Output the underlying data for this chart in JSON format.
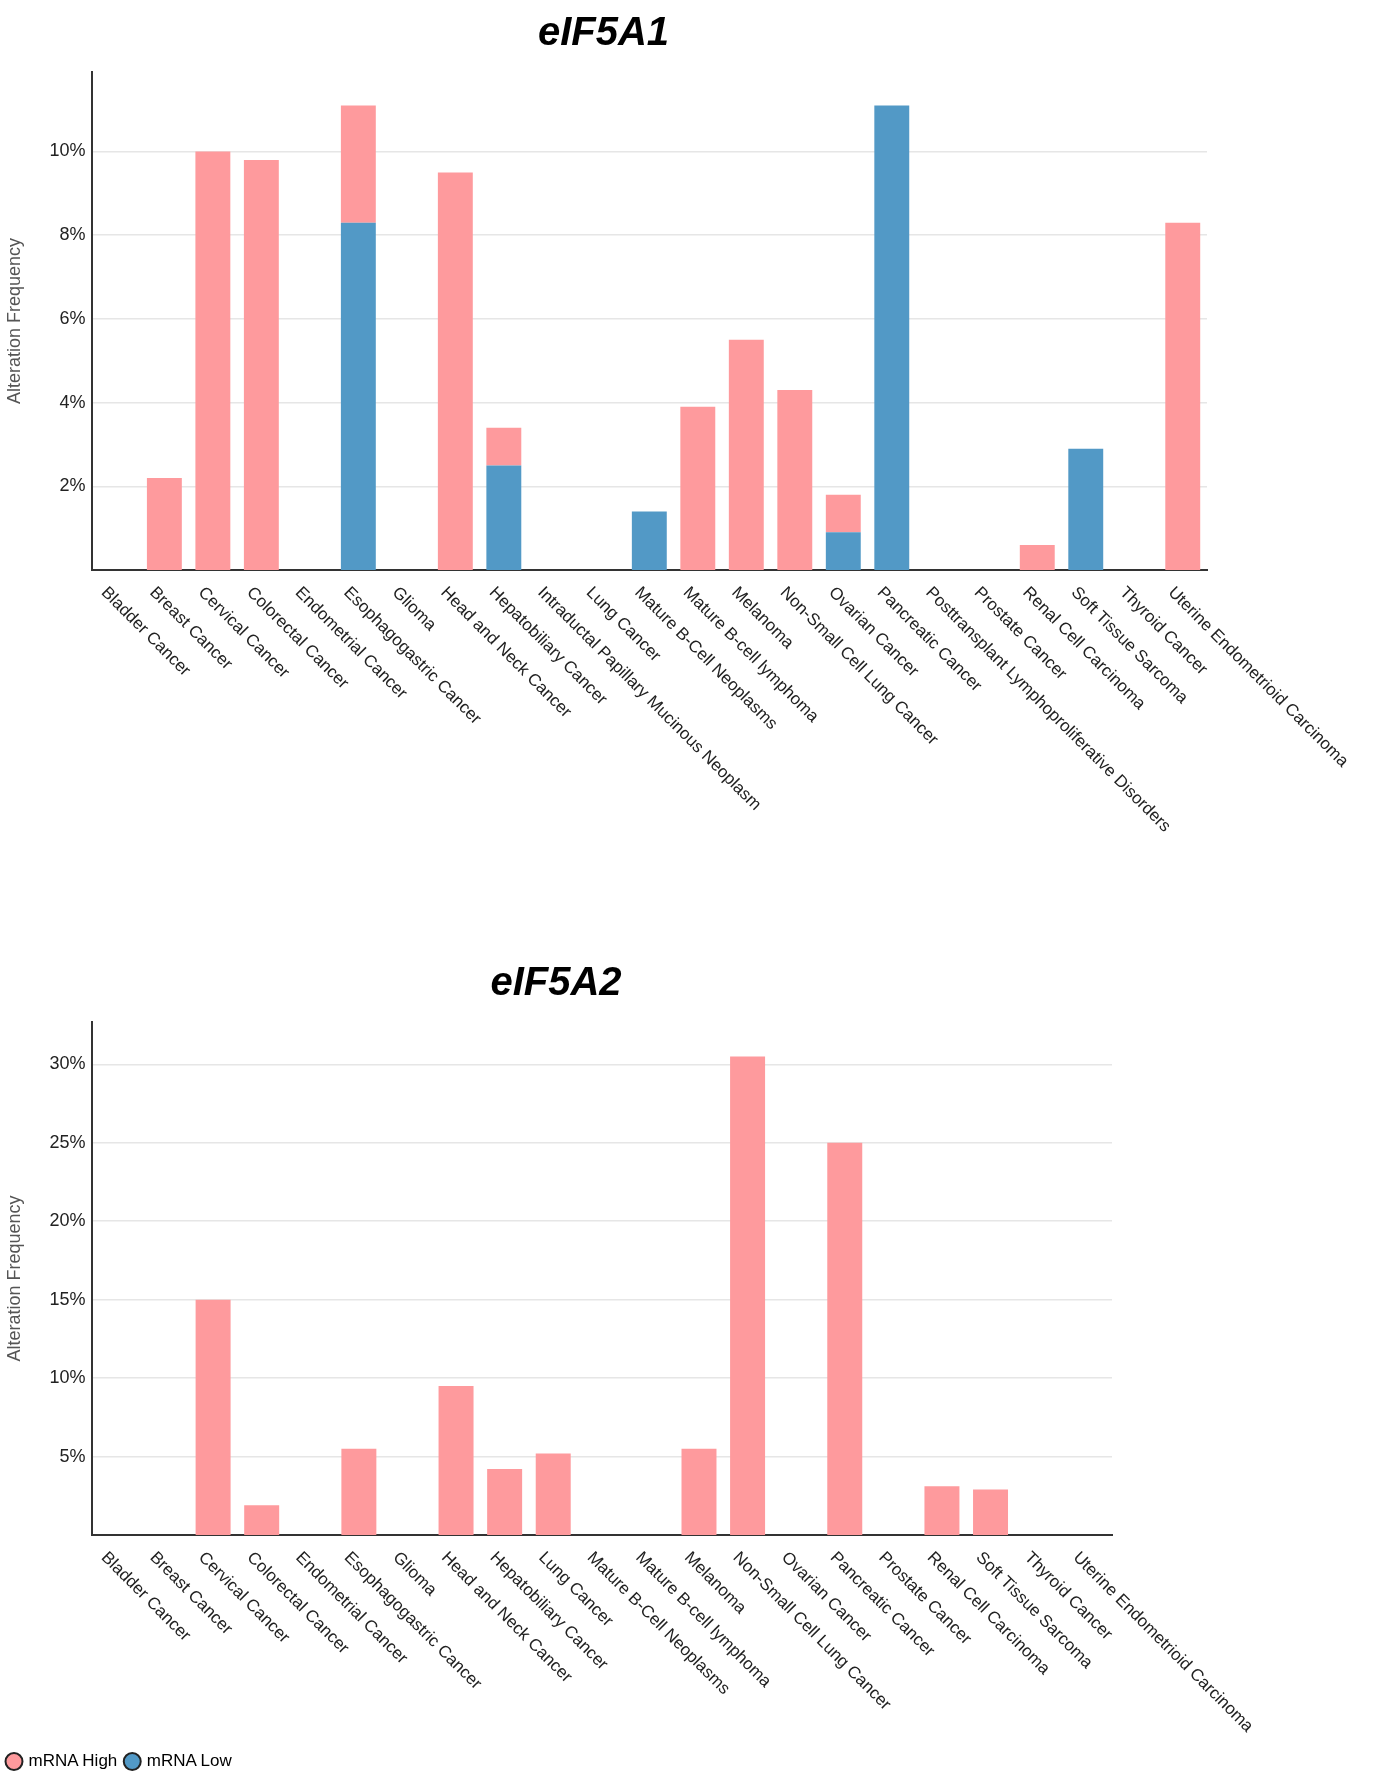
{
  "chart_data": [
    {
      "type": "bar",
      "title": "eIF5A1",
      "ylabel": "Alteration Frequency",
      "stacked": true,
      "grid": "y",
      "legend": false,
      "categories": [
        "Bladder Cancer",
        "Breast Cancer",
        "Cervical Cancer",
        "Colorectal Cancer",
        "Endometrial Cancer",
        "Esophagogastric Cancer",
        "Glioma",
        "Head and Neck Cancer",
        "Hepatobiliary Cancer",
        "Intraductal Papillary Mucinous Neoplasm",
        "Lung Cancer",
        "Mature B-Cell Neoplasms",
        "Mature B-cell lymphoma",
        "Melanoma",
        "Non-Small Cell Lung Cancer",
        "Ovarian Cancer",
        "Pancreatic Cancer",
        "Posttransplant Lymphoproliferative Disorders",
        "Prostate Cancer",
        "Renal Cell Carcinoma",
        "Soft Tissue Sarcoma",
        "Thyroid Cancer",
        "Uterine Endometrioid Carcinoma"
      ],
      "series": [
        {
          "color": "#5299c6",
          "values": [
            null,
            null,
            null,
            null,
            null,
            8.3,
            null,
            null,
            2.5,
            null,
            null,
            1.4,
            null,
            null,
            null,
            0.9,
            11.1,
            null,
            null,
            null,
            2.9,
            null,
            null
          ]
        },
        {
          "color": "#fe9a9d",
          "values": [
            null,
            2.2,
            10.0,
            9.8,
            null,
            2.8,
            null,
            9.5,
            0.9,
            null,
            null,
            null,
            3.9,
            5.5,
            4.3,
            0.9,
            null,
            null,
            null,
            0.6,
            null,
            null,
            8.3
          ]
        }
      ],
      "ylim": [
        0,
        11.9
      ],
      "yticks": [
        {
          "value": 2,
          "label": "2%"
        },
        {
          "value": 4,
          "label": "4%"
        },
        {
          "value": 6,
          "label": "6%"
        },
        {
          "value": 8,
          "label": "8%"
        },
        {
          "value": 10,
          "label": "10%"
        }
      ]
    },
    {
      "type": "bar",
      "title": "eIF5A2",
      "ylabel": "Alteration Frequency",
      "stacked": true,
      "grid": "y",
      "legend": "bottom left",
      "categories": [
        "Bladder Cancer",
        "Breast Cancer",
        "Cervical Cancer",
        "Colorectal Cancer",
        "Endometrial Cancer",
        "Esophagogastric Cancer",
        "Glioma",
        "Head and Neck Cancer",
        "Hepatobiliary Cancer",
        "Lung Cancer",
        "Mature B-Cell Neoplasms",
        "Mature B-cell lymphoma",
        "Melanoma",
        "Non-Small Cell Lung Cancer",
        "Ovarian Cancer",
        "Pancreatic Cancer",
        "Prostate Cancer",
        "Renal Cell Carcinoma",
        "Soft Tissue Sarcoma",
        "Thyroid Cancer",
        "Uterine Endometrioid Carcinoma"
      ],
      "series": [
        {
          "name": "mRNA Low",
          "color": "#5299c6",
          "values": [
            null,
            null,
            null,
            null,
            null,
            null,
            null,
            null,
            null,
            null,
            null,
            null,
            null,
            null,
            null,
            null,
            null,
            null,
            null,
            null,
            null
          ]
        },
        {
          "name": "mRNA High",
          "color": "#fe9a9d",
          "values": [
            null,
            null,
            15.0,
            1.9,
            null,
            5.5,
            null,
            9.5,
            4.2,
            5.2,
            null,
            null,
            5.5,
            30.5,
            null,
            25.0,
            null,
            3.1,
            2.9,
            null,
            null
          ]
        }
      ],
      "ylim": [
        0,
        32.7
      ],
      "yticks": [
        {
          "value": 5,
          "label": "5%"
        },
        {
          "value": 10,
          "label": "10%"
        },
        {
          "value": 15,
          "label": "15%"
        },
        {
          "value": 20,
          "label": "20%"
        },
        {
          "value": 25,
          "label": "25%"
        },
        {
          "value": 30,
          "label": "30%"
        }
      ]
    }
  ]
}
